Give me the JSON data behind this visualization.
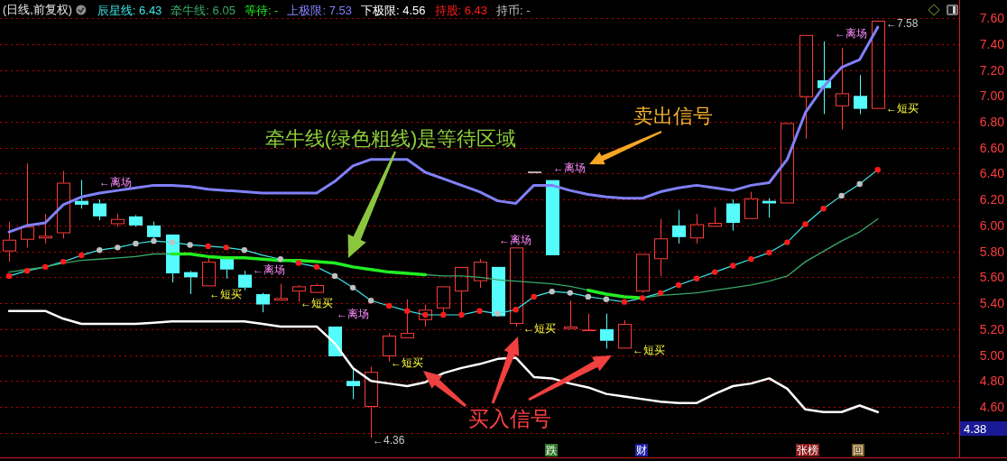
{
  "chart_data": {
    "type": "candlestick",
    "title": "(日线,前复权)",
    "categories": [
      null,
      null,
      null,
      null,
      null,
      null,
      null,
      null,
      null,
      null,
      null,
      null,
      null,
      null,
      null,
      null,
      null,
      null,
      null,
      null,
      null,
      null,
      null,
      null,
      null,
      null,
      null,
      null,
      null,
      null,
      null,
      null,
      null,
      null,
      null,
      null,
      null,
      null,
      null,
      null,
      null,
      null,
      null,
      null,
      null,
      null,
      null,
      null,
      null,
      null,
      null,
      null,
      null
    ],
    "ohlc": [
      [
        5.8,
        6.03,
        5.72,
        5.89
      ],
      [
        5.89,
        6.48,
        5.83,
        5.99
      ],
      [
        5.9,
        6.09,
        5.86,
        5.92
      ],
      [
        5.94,
        6.42,
        5.9,
        6.33
      ],
      [
        6.19,
        6.35,
        6.13,
        6.16
      ],
      [
        6.17,
        6.2,
        6.04,
        6.07
      ],
      [
        6.01,
        6.09,
        5.99,
        6.05
      ],
      [
        6.07,
        6.08,
        5.99,
        6.0
      ],
      [
        6.0,
        6.03,
        5.89,
        5.91
      ],
      [
        5.93,
        5.93,
        5.56,
        5.63
      ],
      [
        5.64,
        5.65,
        5.47,
        5.6
      ],
      [
        5.53,
        5.75,
        5.53,
        5.72
      ],
      [
        5.75,
        5.75,
        5.59,
        5.66
      ],
      [
        5.62,
        5.65,
        5.5,
        5.52
      ],
      [
        5.47,
        5.48,
        5.33,
        5.39
      ],
      [
        5.42,
        5.55,
        5.42,
        5.44
      ],
      [
        5.49,
        5.54,
        5.41,
        5.53
      ],
      [
        5.48,
        5.55,
        5.48,
        5.54
      ],
      [
        5.22,
        5.22,
        4.99,
        4.99
      ],
      [
        4.8,
        4.9,
        4.66,
        4.76
      ],
      [
        4.6,
        4.91,
        4.36,
        4.87
      ],
      [
        4.99,
        5.17,
        4.95,
        5.15
      ],
      [
        5.13,
        5.43,
        5.13,
        5.17
      ],
      [
        5.27,
        5.39,
        5.22,
        5.35
      ],
      [
        5.36,
        5.53,
        5.3,
        5.53
      ],
      [
        5.49,
        5.68,
        5.31,
        5.68
      ],
      [
        5.57,
        5.74,
        5.52,
        5.72
      ],
      [
        5.68,
        5.68,
        5.3,
        5.3
      ],
      [
        5.24,
        5.83,
        5.22,
        5.83
      ],
      [
        6.41,
        6.41,
        6.41,
        6.41
      ],
      [
        6.35,
        6.35,
        5.77,
        5.77
      ],
      [
        5.2,
        5.42,
        5.2,
        5.22
      ],
      [
        5.19,
        5.32,
        5.19,
        5.19
      ],
      [
        5.2,
        5.32,
        5.05,
        5.11
      ],
      [
        5.05,
        5.27,
        5.05,
        5.24
      ],
      [
        5.49,
        5.78,
        5.48,
        5.78
      ],
      [
        5.74,
        6.05,
        5.61,
        5.9
      ],
      [
        6.0,
        6.12,
        5.86,
        5.91
      ],
      [
        5.9,
        6.09,
        5.86,
        6.01
      ],
      [
        5.99,
        6.14,
        5.99,
        6.02
      ],
      [
        6.17,
        6.2,
        5.96,
        6.02
      ],
      [
        6.05,
        6.26,
        6.05,
        6.21
      ],
      [
        6.19,
        6.21,
        6.06,
        6.17
      ],
      [
        6.17,
        6.79,
        6.17,
        6.79
      ],
      [
        6.99,
        7.47,
        6.67,
        7.47
      ],
      [
        7.12,
        7.42,
        6.86,
        7.06
      ],
      [
        6.92,
        7.37,
        6.74,
        7.02
      ],
      [
        7.0,
        7.16,
        6.86,
        6.9
      ],
      [
        6.9,
        7.58,
        6.9,
        7.58
      ],
      null,
      null,
      null,
      null
    ],
    "colors": [
      "#ff3c3c",
      "#ff3c3c",
      "#ff3c3c",
      "#ff3c3c",
      "#54fcfc",
      "#54fcfc",
      "#ff3c3c",
      "#54fcfc",
      "#54fcfc",
      "#54fcfc",
      "#54fcfc",
      "#ff3c3c",
      "#54fcfc",
      "#54fcfc",
      "#54fcfc",
      "#ff3c3c",
      "#ff3c3c",
      "#ff3c3c",
      "#54fcfc",
      "#54fcfc",
      "#ff3c3c",
      "#ff3c3c",
      "#ff3c3c",
      "#ff3c3c",
      "#ff3c3c",
      "#ff3c3c",
      "#ff3c3c",
      "#54fcfc",
      "#ff3c3c",
      "#e6e6e6",
      "#54fcfc",
      "#ff3c3c",
      "#ff3c3c",
      "#54fcfc",
      "#ff3c3c",
      "#ff3c3c",
      "#ff3c3c",
      "#54fcfc",
      "#ff3c3c",
      "#ff3c3c",
      "#54fcfc",
      "#ff3c3c",
      "#54fcfc",
      "#ff3c3c",
      "#ff3c3c",
      "#54fcfc",
      "#ff3c3c",
      "#54fcfc",
      "#ff3c3c",
      null,
      null,
      null,
      null
    ],
    "series": [
      {
        "name": "辰星线: 6.43",
        "type": "line",
        "color": "#3fe8e8",
        "values": [
          5.61,
          5.65,
          5.68,
          5.72,
          5.77,
          5.81,
          5.83,
          5.86,
          5.88,
          5.87,
          5.85,
          5.84,
          5.83,
          5.81,
          5.77,
          5.74,
          5.71,
          5.68,
          5.61,
          5.52,
          5.42,
          5.38,
          5.34,
          5.31,
          5.31,
          5.31,
          5.34,
          5.32,
          5.35,
          5.45,
          5.49,
          5.48,
          5.45,
          5.43,
          5.41,
          5.44,
          5.48,
          5.54,
          5.59,
          5.64,
          5.69,
          5.74,
          5.79,
          5.87,
          6.01,
          6.13,
          6.23,
          6.32,
          6.43,
          null,
          null,
          null,
          null
        ]
      },
      {
        "name": "牵牛线: 6.05",
        "type": "line",
        "color": "#3aa866",
        "values": [
          5.64,
          5.66,
          5.68,
          5.71,
          5.73,
          5.74,
          5.75,
          5.76,
          5.78,
          5.78,
          5.78,
          5.76,
          5.75,
          5.75,
          5.74,
          5.73,
          5.73,
          5.72,
          5.71,
          5.68,
          5.66,
          5.64,
          5.63,
          5.62,
          5.61,
          5.61,
          5.6,
          5.58,
          5.57,
          5.56,
          5.55,
          5.53,
          5.5,
          5.47,
          5.45,
          5.44,
          5.46,
          5.47,
          5.48,
          5.5,
          5.52,
          5.54,
          5.57,
          5.61,
          5.72,
          5.8,
          5.88,
          5.95,
          6.05,
          null,
          null,
          null,
          null
        ]
      },
      {
        "name": "等待: -",
        "type": "line",
        "color": "#22ee22",
        "values": [
          null,
          null,
          null,
          null,
          null,
          null,
          null,
          null,
          null,
          5.78,
          5.78,
          5.76,
          5.75,
          5.75,
          5.74,
          5.73,
          5.73,
          5.72,
          5.71,
          5.68,
          5.66,
          5.64,
          5.63,
          5.62,
          null,
          null,
          null,
          null,
          null,
          null,
          null,
          null,
          5.5,
          5.47,
          5.45,
          5.44,
          null,
          null,
          null,
          null,
          null,
          null,
          null,
          null,
          null,
          null,
          null,
          null,
          null,
          null,
          null,
          null,
          null
        ]
      },
      {
        "name": "上极限: 7.53",
        "type": "line",
        "color": "#8080f8",
        "values": [
          5.95,
          6.0,
          6.02,
          6.16,
          6.22,
          6.25,
          6.27,
          6.29,
          6.31,
          6.31,
          6.3,
          6.28,
          6.27,
          6.26,
          6.25,
          6.25,
          6.25,
          6.25,
          6.34,
          6.46,
          6.51,
          6.51,
          6.51,
          6.41,
          6.36,
          6.31,
          6.26,
          6.19,
          6.17,
          6.31,
          6.31,
          6.27,
          6.24,
          6.22,
          6.21,
          6.21,
          6.26,
          6.29,
          6.31,
          6.29,
          6.27,
          6.31,
          6.33,
          6.51,
          6.87,
          7.07,
          7.22,
          7.28,
          7.53,
          null,
          null,
          null,
          null
        ]
      },
      {
        "name": "下极限: 4.56",
        "type": "line",
        "color": "#ffffff",
        "values": [
          5.34,
          5.34,
          5.34,
          5.28,
          5.24,
          5.24,
          5.24,
          5.24,
          5.25,
          5.26,
          5.26,
          5.26,
          5.26,
          5.26,
          5.24,
          5.22,
          5.22,
          5.22,
          5.09,
          4.9,
          4.8,
          4.78,
          4.76,
          4.79,
          4.86,
          4.9,
          4.93,
          4.97,
          4.98,
          4.83,
          4.82,
          4.78,
          4.75,
          4.7,
          4.68,
          4.66,
          4.64,
          4.63,
          4.63,
          4.7,
          4.76,
          4.78,
          4.82,
          4.74,
          4.58,
          4.56,
          4.56,
          4.61,
          4.56,
          null,
          null,
          null,
          null
        ]
      },
      {
        "name": "持股: 6.43",
        "type": "scatter",
        "marker": "circle",
        "color": "#ff1a1a",
        "values": [
          5.61,
          5.65,
          5.68,
          5.72,
          5.77,
          null,
          null,
          null,
          null,
          null,
          null,
          5.84,
          5.83,
          null,
          null,
          null,
          5.71,
          5.68,
          null,
          null,
          null,
          5.38,
          5.34,
          5.31,
          5.31,
          5.31,
          5.34,
          null,
          5.35,
          5.45,
          null,
          null,
          null,
          null,
          5.41,
          5.44,
          5.48,
          5.54,
          5.59,
          5.64,
          5.69,
          5.74,
          5.79,
          5.87,
          6.01,
          6.13,
          null,
          null,
          6.43,
          null,
          null,
          null,
          null
        ]
      },
      {
        "name": "持币: -",
        "type": "scatter",
        "marker": "circle",
        "color": "#c0c0c0",
        "values": [
          null,
          null,
          null,
          null,
          null,
          5.81,
          5.83,
          5.86,
          5.88,
          5.87,
          5.85,
          null,
          null,
          5.81,
          null,
          5.74,
          null,
          null,
          5.61,
          5.52,
          5.42,
          null,
          null,
          null,
          null,
          null,
          null,
          5.32,
          null,
          null,
          5.49,
          5.48,
          5.45,
          5.43,
          null,
          null,
          null,
          null,
          null,
          null,
          null,
          null,
          null,
          null,
          null,
          null,
          6.23,
          6.32,
          null,
          null,
          null,
          null,
          null
        ]
      }
    ],
    "ylim": [
      4.21,
      7.74
    ],
    "yticks": [
      {
        "value": 4.4,
        "label": null
      },
      {
        "value": 4.6,
        "label": "4.60"
      },
      {
        "value": 4.8,
        "label": "4.80"
      },
      {
        "value": 5.0,
        "label": "5.00"
      },
      {
        "value": 5.2,
        "label": "5.20"
      },
      {
        "value": 5.4,
        "label": "5.40"
      },
      {
        "value": 5.6,
        "label": "5.60"
      },
      {
        "value": 5.8,
        "label": "5.80"
      },
      {
        "value": 6.0,
        "label": "6.00"
      },
      {
        "value": 6.2,
        "label": "6.20"
      },
      {
        "value": 6.4,
        "label": "6.40"
      },
      {
        "value": 6.6,
        "label": "6.60"
      },
      {
        "value": 6.8,
        "label": "6.80"
      },
      {
        "value": 7.0,
        "label": "7.00"
      },
      {
        "value": 7.2,
        "label": "7.20"
      },
      {
        "value": 7.4,
        "label": "7.40"
      },
      {
        "value": 7.6,
        "label": "7.60"
      }
    ],
    "grid": "y",
    "tick_labels": "y",
    "annotations": [
      "牵牛线(绿色粗线)是等待区域",
      "卖出信号",
      "买入信号",
      "←离场",
      "←离场",
      "←离场",
      "←离场",
      "←离场",
      "←离场",
      "←短买",
      "←短买",
      "←短买",
      "←短买",
      "←短买",
      "←短买",
      "←4.36",
      "←7.58",
      "跌",
      "财",
      "张榜",
      "回",
      "4.38"
    ]
  }
}
